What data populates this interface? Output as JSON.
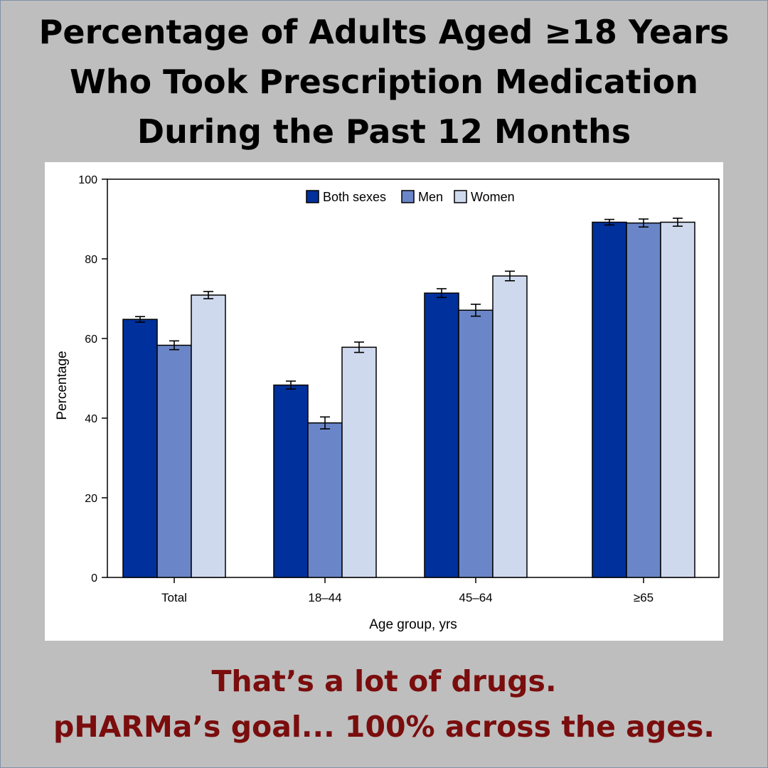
{
  "headline": {
    "line1": "Percentage of Adults Aged ≥18 Years",
    "line2": "Who Took Prescription Medication",
    "line3": "During the Past 12 Months"
  },
  "caption": {
    "line1": "That’s a lot of drugs.",
    "line2": "pHARMa’s  goal... 100% across the ages."
  },
  "colors": {
    "background": "#bebebe",
    "both_sexes": "#00309b",
    "men": "#6a86c8",
    "women": "#cfd9ee",
    "caption_text": "#7a0d0d"
  },
  "chart_data": {
    "type": "bar",
    "title": "",
    "xlabel": "Age group, yrs",
    "ylabel": "Percentage",
    "ylim": [
      0,
      100
    ],
    "yticks": [
      0,
      20,
      40,
      60,
      80,
      100
    ],
    "categories": [
      "Total",
      "18–44",
      "45–64",
      "≥65"
    ],
    "legend_position": "top-center",
    "series": [
      {
        "name": "Both sexes",
        "color": "#00309b",
        "values": [
          64.8,
          48.3,
          71.4,
          89.2
        ],
        "ci_low": [
          64.1,
          47.3,
          70.3,
          88.5
        ],
        "ci_high": [
          65.5,
          49.3,
          72.5,
          89.9
        ]
      },
      {
        "name": "Men",
        "color": "#6a86c8",
        "values": [
          58.3,
          38.8,
          67.1,
          89.0
        ],
        "ci_low": [
          57.2,
          37.3,
          65.6,
          88.0
        ],
        "ci_high": [
          59.4,
          40.3,
          68.6,
          90.0
        ]
      },
      {
        "name": "Women",
        "color": "#cfd9ee",
        "values": [
          70.9,
          57.8,
          75.7,
          89.2
        ],
        "ci_low": [
          70.0,
          56.5,
          74.5,
          88.2
        ],
        "ci_high": [
          71.8,
          59.1,
          76.9,
          90.2
        ]
      }
    ]
  }
}
